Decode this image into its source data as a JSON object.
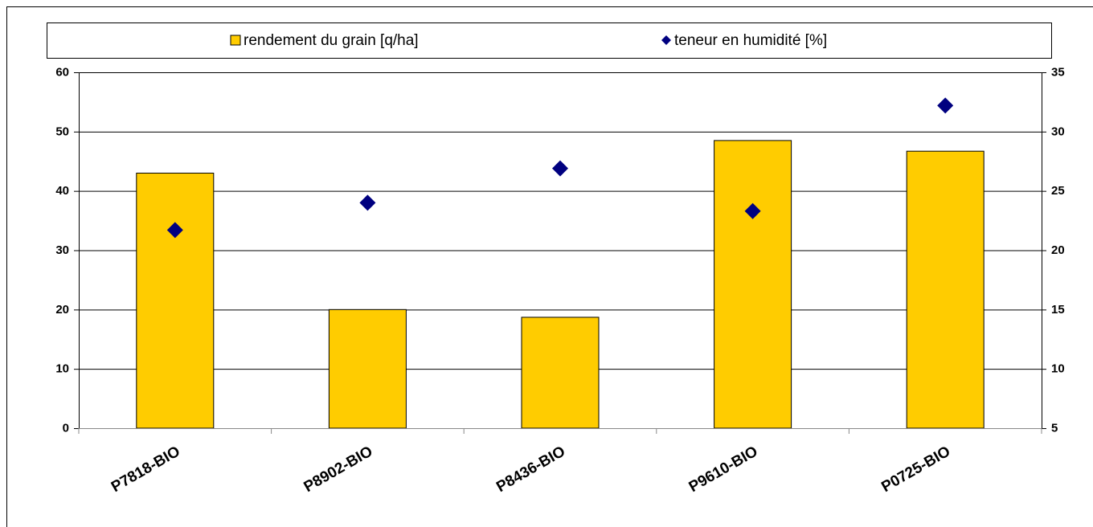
{
  "chart_data": {
    "type": "bar",
    "categories": [
      "P7818-BIO",
      "P8902-BIO",
      "P8436-BIO",
      "P9610-BIO",
      "P0725-BIO"
    ],
    "series": [
      {
        "name": "rendement du grain [q/ha]",
        "color": "#ffcc00",
        "type": "bar",
        "values": [
          43,
          20,
          18.7,
          48.5,
          46.7
        ]
      },
      {
        "name": "teneur en humidité [%]",
        "color": "#000080",
        "type": "scatter",
        "axis": "y2",
        "values": [
          21.7,
          24.0,
          26.9,
          23.3,
          32.2
        ]
      }
    ],
    "ylim": [
      0,
      60
    ],
    "yticks": [
      0,
      10,
      20,
      30,
      40,
      50,
      60
    ],
    "y2lim": [
      5,
      35
    ],
    "y2ticks": [
      5,
      10,
      15,
      20,
      25,
      30,
      35
    ],
    "grid": true,
    "legend": "top"
  }
}
